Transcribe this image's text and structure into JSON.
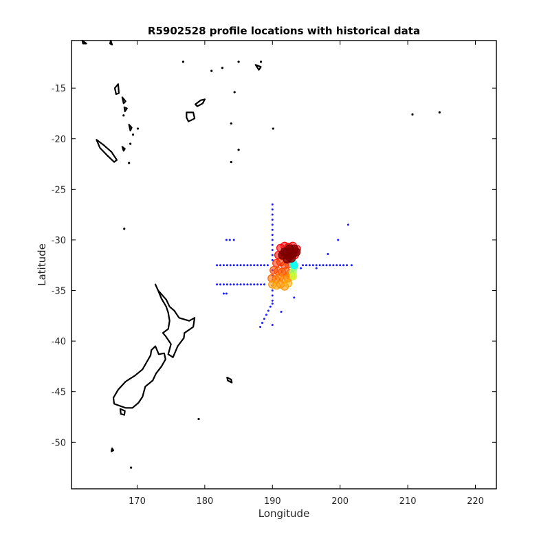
{
  "chart_data": {
    "type": "scatter",
    "title": "R5902528 profile locations with historical data",
    "xlabel": "Longitude",
    "ylabel": "Latitude",
    "xlim": [
      160.3,
      223.1
    ],
    "ylim": [
      -54.6,
      -10.3
    ],
    "xticks": [
      170,
      180,
      190,
      200,
      210,
      220
    ],
    "yticks": [
      -15,
      -20,
      -25,
      -30,
      -35,
      -40,
      -45,
      -50
    ],
    "grid": false,
    "colors": {
      "historical": "#1a1aff",
      "coast": "#000000"
    },
    "historical_points": [
      [
        190,
        -26.5
      ],
      [
        190,
        -27
      ],
      [
        190,
        -27.5
      ],
      [
        190,
        -28
      ],
      [
        190,
        -28.5
      ],
      [
        190,
        -29
      ],
      [
        190,
        -29.5
      ],
      [
        190,
        -30
      ],
      [
        190,
        -30.5
      ],
      [
        190,
        -31
      ],
      [
        190,
        -31.5
      ],
      [
        190,
        -32
      ],
      [
        190,
        -33
      ],
      [
        190,
        -33.5
      ],
      [
        190,
        -34
      ],
      [
        190,
        -34.5
      ],
      [
        190,
        -35
      ],
      [
        190,
        -35.5
      ],
      [
        190,
        -36
      ],
      [
        190,
        -36.3
      ],
      [
        181.8,
        -32.5
      ],
      [
        182.3,
        -32.5
      ],
      [
        182.8,
        -32.5
      ],
      [
        183.3,
        -32.5
      ],
      [
        183.8,
        -32.5
      ],
      [
        184.3,
        -32.5
      ],
      [
        184.8,
        -32.5
      ],
      [
        185.3,
        -32.5
      ],
      [
        185.8,
        -32.5
      ],
      [
        186.3,
        -32.5
      ],
      [
        186.8,
        -32.5
      ],
      [
        187.3,
        -32.5
      ],
      [
        187.8,
        -32.5
      ],
      [
        188.3,
        -32.5
      ],
      [
        188.8,
        -32.5
      ],
      [
        189.3,
        -32.5
      ],
      [
        194.5,
        -32.5
      ],
      [
        195,
        -32.5
      ],
      [
        195.5,
        -32.5
      ],
      [
        196,
        -32.5
      ],
      [
        196.5,
        -32.5
      ],
      [
        197,
        -32.5
      ],
      [
        197.5,
        -32.5
      ],
      [
        198,
        -32.5
      ],
      [
        198.5,
        -32.5
      ],
      [
        199,
        -32.5
      ],
      [
        199.5,
        -32.5
      ],
      [
        200,
        -32.5
      ],
      [
        200.5,
        -32.5
      ],
      [
        201,
        -32.5
      ],
      [
        201.7,
        -32.5
      ],
      [
        181.8,
        -34.4
      ],
      [
        182.3,
        -34.4
      ],
      [
        182.8,
        -34.4
      ],
      [
        183.3,
        -34.4
      ],
      [
        183.8,
        -34.4
      ],
      [
        184.3,
        -34.4
      ],
      [
        184.8,
        -34.4
      ],
      [
        185.3,
        -34.4
      ],
      [
        185.8,
        -34.4
      ],
      [
        186.3,
        -34.4
      ],
      [
        186.8,
        -34.4
      ],
      [
        187.3,
        -34.4
      ],
      [
        187.8,
        -34.4
      ],
      [
        188.3,
        -34.4
      ],
      [
        188.8,
        -34.4
      ],
      [
        183.2,
        -35.3
      ],
      [
        182.8,
        -35.3
      ],
      [
        183.2,
        -30
      ],
      [
        183.7,
        -30
      ],
      [
        184.3,
        -30
      ],
      [
        188.2,
        -38.6
      ],
      [
        188.5,
        -38.2
      ],
      [
        188.8,
        -37.8
      ],
      [
        189.1,
        -37.4
      ],
      [
        189.4,
        -37
      ],
      [
        189.7,
        -36.6
      ],
      [
        190,
        -38.4
      ],
      [
        191.3,
        -37.1
      ],
      [
        193.2,
        -35.7
      ],
      [
        194.2,
        -32.8
      ],
      [
        196.5,
        -32.8
      ],
      [
        198.2,
        -31.4
      ],
      [
        199.7,
        -30
      ],
      [
        201.2,
        -28.5
      ]
    ],
    "profile_points": [
      [
        191.2,
        -30.8,
        "#ff0000"
      ],
      [
        191.8,
        -30.6,
        "#ff0000"
      ],
      [
        192.4,
        -30.7,
        "#dd0000"
      ],
      [
        193,
        -30.6,
        "#ff0000"
      ],
      [
        193.6,
        -30.9,
        "#ee0000"
      ],
      [
        190.9,
        -31.5,
        "#ff0000"
      ],
      [
        191.5,
        -31.6,
        "#ff2200"
      ],
      [
        192.1,
        -31.5,
        "#ff0000"
      ],
      [
        192.7,
        -31.3,
        "#cc0000"
      ],
      [
        193.3,
        -31.5,
        "#ff0000"
      ],
      [
        190.6,
        -32.3,
        "#ff2a00"
      ],
      [
        191.2,
        -32.2,
        "#ff3300"
      ],
      [
        191.8,
        -32.5,
        "#ff3300"
      ],
      [
        192.4,
        -32.4,
        "#ff4400"
      ],
      [
        190.2,
        -33,
        "#ff4400"
      ],
      [
        190.8,
        -33.1,
        "#ff4d00"
      ],
      [
        191.4,
        -33.2,
        "#ff5500"
      ],
      [
        192,
        -33.1,
        "#ff5500"
      ],
      [
        192.6,
        -33.3,
        "#ff6600"
      ],
      [
        189.9,
        -33.8,
        "#ff6600"
      ],
      [
        190.5,
        -33.9,
        "#ff7000"
      ],
      [
        191.1,
        -33.7,
        "#ff7a00"
      ],
      [
        191.7,
        -33.9,
        "#ff8000"
      ],
      [
        192.3,
        -33.8,
        "#ff8800"
      ],
      [
        192.8,
        -33.6,
        "#ff8c00"
      ],
      [
        190,
        -34.4,
        "#ff9900"
      ],
      [
        190.6,
        -34.5,
        "#ffa000"
      ],
      [
        191.2,
        -34.4,
        "#ff9000"
      ],
      [
        191.8,
        -34.6,
        "#ff9900"
      ],
      [
        192.3,
        -34.3,
        "#ffaa00"
      ]
    ],
    "cluster_points": [
      [
        191.5,
        -31.5
      ],
      [
        192,
        -31.3
      ],
      [
        192.5,
        -31.6
      ],
      [
        193,
        -31.4
      ],
      [
        193.5,
        -31.2
      ],
      [
        192.2,
        -31.9
      ],
      [
        192.8,
        -31.8
      ],
      [
        191.8,
        -31.2
      ],
      [
        193.2,
        -30.9
      ],
      [
        192.5,
        -30.9
      ]
    ],
    "cyan_points": [
      [
        193.1,
        -32.3,
        "#33ffcc"
      ],
      [
        193.2,
        -32.7,
        "#66ff99"
      ],
      [
        193,
        -33.2,
        "#99ff66"
      ],
      [
        193.1,
        -33.6,
        "#ccff33"
      ],
      [
        193.2,
        -32.5,
        "#00ffff"
      ]
    ],
    "coastlines": [
      [
        [
          172.7,
          -34.4
        ],
        [
          173.1,
          -35.0
        ],
        [
          174.3,
          -35.9
        ],
        [
          174.8,
          -36.6
        ],
        [
          175.5,
          -37.0
        ],
        [
          176.2,
          -37.7
        ],
        [
          177.7,
          -38.0
        ],
        [
          178.5,
          -37.7
        ],
        [
          178.3,
          -38.6
        ],
        [
          177.0,
          -39.2
        ],
        [
          176.9,
          -39.7
        ],
        [
          176.0,
          -40.5
        ],
        [
          175.3,
          -41.6
        ],
        [
          174.6,
          -41.3
        ],
        [
          175.0,
          -40.3
        ],
        [
          174.2,
          -39.5
        ],
        [
          173.8,
          -39.2
        ],
        [
          174.6,
          -38.8
        ],
        [
          174.8,
          -38.0
        ],
        [
          174.6,
          -37.2
        ],
        [
          174.3,
          -36.6
        ],
        [
          173.6,
          -35.8
        ],
        [
          173.1,
          -35.0
        ],
        [
          172.7,
          -34.4
        ]
      ],
      [
        [
          172.7,
          -40.5
        ],
        [
          173.2,
          -41.3
        ],
        [
          174.0,
          -41.2
        ],
        [
          174.2,
          -41.8
        ],
        [
          173.6,
          -42.5
        ],
        [
          172.8,
          -43.2
        ],
        [
          172.3,
          -43.9
        ],
        [
          171.2,
          -44.5
        ],
        [
          170.8,
          -45.5
        ],
        [
          170.2,
          -46.1
        ],
        [
          169.3,
          -46.6
        ],
        [
          168.3,
          -46.6
        ],
        [
          166.6,
          -46.2
        ],
        [
          166.5,
          -45.6
        ],
        [
          167.2,
          -44.8
        ],
        [
          168.3,
          -44.0
        ],
        [
          169.7,
          -43.4
        ],
        [
          170.8,
          -42.8
        ],
        [
          171.4,
          -42.1
        ],
        [
          172.0,
          -41.4
        ],
        [
          172.1,
          -40.9
        ],
        [
          172.7,
          -40.5
        ]
      ],
      [
        [
          167.5,
          -46.7
        ],
        [
          168.2,
          -46.9
        ],
        [
          168.1,
          -47.3
        ],
        [
          167.6,
          -47.2
        ],
        [
          167.5,
          -46.7
        ]
      ],
      [
        [
          164.0,
          -20.1
        ],
        [
          165.0,
          -20.6
        ],
        [
          166.2,
          -21.3
        ],
        [
          167.0,
          -22.1
        ],
        [
          166.6,
          -22.3
        ],
        [
          165.5,
          -21.6
        ],
        [
          164.5,
          -20.9
        ],
        [
          164.0,
          -20.1
        ]
      ],
      [
        [
          177.3,
          -17.4
        ],
        [
          178.3,
          -17.4
        ],
        [
          178.5,
          -18.0
        ],
        [
          177.6,
          -18.3
        ],
        [
          177.3,
          -17.9
        ],
        [
          177.3,
          -17.4
        ]
      ],
      [
        [
          178.6,
          -16.6
        ],
        [
          179.4,
          -16.2
        ],
        [
          180.0,
          -16.1
        ],
        [
          179.7,
          -16.5
        ],
        [
          178.9,
          -16.8
        ],
        [
          178.6,
          -16.6
        ]
      ],
      [
        [
          167.2,
          -14.6
        ],
        [
          167.3,
          -15.5
        ],
        [
          166.9,
          -15.6
        ],
        [
          166.7,
          -15.0
        ],
        [
          167.2,
          -14.6
        ]
      ],
      [
        [
          167.8,
          -15.9
        ],
        [
          168.3,
          -16.3
        ],
        [
          168.0,
          -16.5
        ],
        [
          167.8,
          -15.9
        ]
      ],
      [
        [
          168.1,
          -16.9
        ],
        [
          168.5,
          -17.0
        ],
        [
          168.2,
          -17.3
        ],
        [
          168.1,
          -16.9
        ]
      ],
      [
        [
          168.8,
          -18.6
        ],
        [
          169.2,
          -18.9
        ],
        [
          169.0,
          -19.2
        ],
        [
          168.8,
          -18.6
        ]
      ],
      [
        [
          167.8,
          -20.8
        ],
        [
          168.2,
          -21.0
        ],
        [
          168.0,
          -21.2
        ],
        [
          167.8,
          -20.8
        ]
      ],
      [
        [
          166.3,
          -50.6
        ],
        [
          166.5,
          -50.8
        ],
        [
          166.2,
          -50.9
        ],
        [
          166.3,
          -50.6
        ]
      ],
      [
        [
          183.3,
          -43.6
        ],
        [
          183.9,
          -43.8
        ],
        [
          184.0,
          -44.1
        ],
        [
          183.4,
          -43.9
        ],
        [
          183.3,
          -43.6
        ]
      ],
      [
        [
          187.5,
          -12.7
        ],
        [
          188.3,
          -12.9
        ],
        [
          188.0,
          -13.2
        ],
        [
          187.5,
          -12.7
        ]
      ],
      [
        [
          161.9,
          -10.3
        ],
        [
          162.5,
          -10.6
        ],
        [
          162.0,
          -10.6
        ],
        [
          161.9,
          -10.3
        ]
      ],
      [
        [
          166.1,
          -10.3
        ],
        [
          166.3,
          -10.7
        ],
        [
          166.0,
          -10.6
        ],
        [
          166.1,
          -10.3
        ]
      ]
    ],
    "islets": [
      [
        176.8,
        -12.4
      ],
      [
        181.0,
        -13.3
      ],
      [
        182.6,
        -13.0
      ],
      [
        184.4,
        -15.4
      ],
      [
        183.9,
        -18.5
      ],
      [
        190.1,
        -19.0
      ],
      [
        185.0,
        -21.1
      ],
      [
        168.1,
        -28.9
      ],
      [
        183.9,
        -22.3
      ],
      [
        168.8,
        -22.4
      ],
      [
        170.1,
        -19.0
      ],
      [
        169.4,
        -19.6
      ],
      [
        169.0,
        -20.5
      ],
      [
        168.0,
        -17.7
      ],
      [
        179.1,
        -47.7
      ],
      [
        169.1,
        -52.5
      ],
      [
        210.7,
        -17.6
      ],
      [
        214.7,
        -17.4
      ],
      [
        188.3,
        -12.4
      ],
      [
        185.0,
        -12.4
      ]
    ]
  }
}
